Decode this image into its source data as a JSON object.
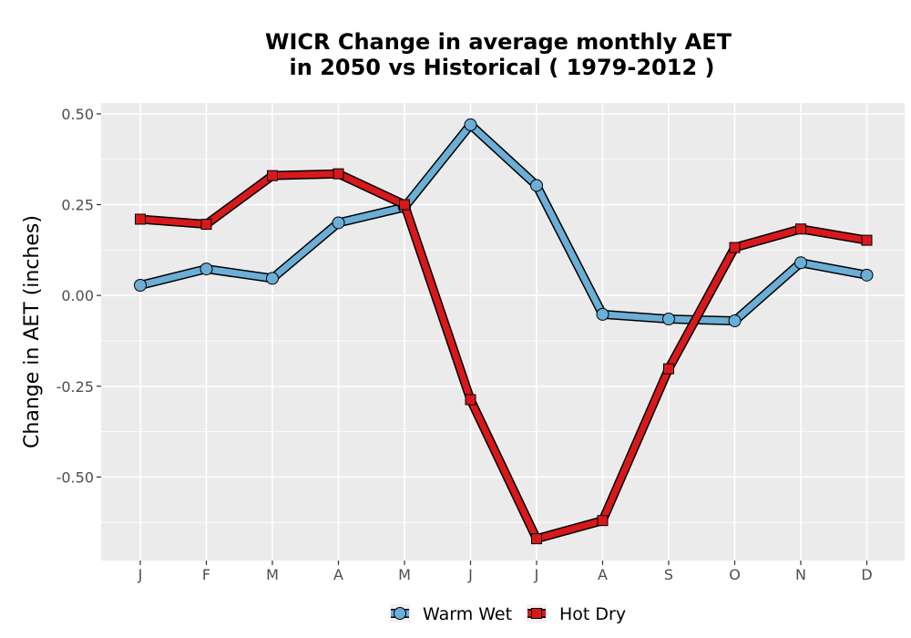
{
  "chart_data": {
    "type": "line",
    "title_line1": "WICR  Change in average monthly AET",
    "title_line2": "in 2050 vs Historical ( 1979-2012 )",
    "xlabel": "",
    "ylabel": "Change in AET (inches)",
    "categories": [
      "J",
      "F",
      "M",
      "A",
      "M",
      "J",
      "J",
      "A",
      "S",
      "O",
      "N",
      "D"
    ],
    "y_ticks": [
      0.5,
      0.25,
      0.0,
      -0.25,
      -0.5
    ],
    "y_tick_labels": [
      "0.50",
      "0.25",
      "0.00",
      "-0.25",
      "-0.50"
    ],
    "ylim": [
      -0.73,
      0.53
    ],
    "grid": true,
    "legend_position": "bottom",
    "series": [
      {
        "name": "Warm Wet",
        "color": "#6baed6",
        "marker": "circle",
        "values": [
          0.028,
          0.073,
          0.047,
          0.2,
          0.243,
          0.47,
          0.303,
          -0.052,
          -0.065,
          -0.07,
          0.09,
          0.056
        ]
      },
      {
        "name": "Hot Dry",
        "color": "#d7191c",
        "marker": "square",
        "values": [
          0.21,
          0.196,
          0.33,
          0.335,
          0.25,
          -0.287,
          -0.67,
          -0.62,
          -0.202,
          0.132,
          0.183,
          0.152
        ]
      }
    ]
  }
}
